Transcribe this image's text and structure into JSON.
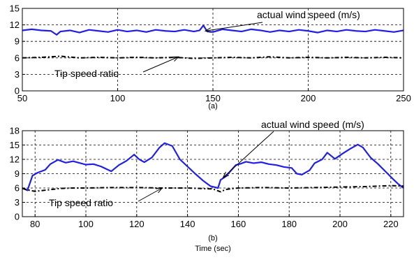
{
  "colors": {
    "wind": "#1f1fe6",
    "tsr": "#000000",
    "axis": "#000000"
  },
  "chart_data": [
    {
      "type": "line",
      "id": "a",
      "caption": "(a)",
      "xlabel": "",
      "ylabel": "",
      "xlim": [
        50,
        250
      ],
      "ylim": [
        0,
        15
      ],
      "xticks": [
        50,
        100,
        150,
        200,
        250
      ],
      "yticks": [
        0,
        3,
        6,
        9,
        12,
        15
      ],
      "grid": true,
      "series": [
        {
          "key": "wind",
          "style": "solid",
          "x": [
            50,
            55,
            60,
            65,
            68,
            70,
            75,
            80,
            85,
            90,
            95,
            100,
            105,
            110,
            115,
            120,
            125,
            130,
            135,
            140,
            143,
            145,
            147,
            150,
            155,
            160,
            165,
            170,
            175,
            180,
            185,
            190,
            195,
            200,
            205,
            210,
            215,
            220,
            225,
            230,
            235,
            240,
            245,
            250
          ],
          "y": [
            11.0,
            11.2,
            11.0,
            10.9,
            10.2,
            10.8,
            11.0,
            10.6,
            11.1,
            10.9,
            10.7,
            11.1,
            10.8,
            11.0,
            10.7,
            11.1,
            10.9,
            10.8,
            11.1,
            10.8,
            11.0,
            11.9,
            10.8,
            10.7,
            11.2,
            11.0,
            10.8,
            11.2,
            11.0,
            10.7,
            11.0,
            10.8,
            11.1,
            10.9,
            10.6,
            11.0,
            10.8,
            11.1,
            10.9,
            10.8,
            11.1,
            10.9,
            10.7,
            11.0
          ]
        },
        {
          "key": "tsr",
          "style": "dashed",
          "x": [
            50,
            60,
            70,
            80,
            90,
            100,
            110,
            120,
            130,
            140,
            150,
            160,
            170,
            180,
            190,
            200,
            210,
            220,
            230,
            240,
            250
          ],
          "y": [
            6.0,
            6.1,
            6.3,
            6.0,
            6.1,
            6.0,
            6.1,
            6.0,
            6.1,
            5.9,
            6.0,
            6.1,
            6.0,
            6.2,
            6.0,
            6.1,
            6.0,
            6.1,
            6.0,
            6.1,
            6.0
          ]
        }
      ],
      "annotations": [
        {
          "text": "actual wind speed (m/s)",
          "point": [
            146,
            10.9
          ]
        },
        {
          "text": "Tip speed ratio",
          "point": [
            132,
            6.2
          ]
        }
      ]
    },
    {
      "type": "line",
      "id": "b",
      "caption": "(b)",
      "xlabel": "Time (sec)",
      "ylabel": "",
      "xlim": [
        75,
        225
      ],
      "ylim": [
        0,
        18
      ],
      "xticks": [
        80,
        100,
        120,
        140,
        160,
        180,
        200,
        220
      ],
      "yticks": [
        0,
        3,
        6,
        9,
        12,
        15,
        18
      ],
      "grid": true,
      "series": [
        {
          "key": "wind",
          "style": "solid",
          "x": [
            75,
            77,
            79,
            81,
            84,
            86,
            89,
            92,
            95,
            100,
            103,
            106,
            110,
            113,
            116,
            119,
            121,
            123,
            126,
            129,
            131,
            134,
            137,
            140,
            143,
            146,
            149,
            152,
            153,
            155,
            157,
            159,
            161,
            163,
            166,
            169,
            172,
            175,
            178,
            181,
            183,
            185,
            188,
            190,
            193,
            195,
            198,
            201,
            204,
            207,
            209,
            212,
            215,
            218,
            221,
            223,
            225
          ],
          "y": [
            6.0,
            5.5,
            8.6,
            9.2,
            9.8,
            11.0,
            11.9,
            11.3,
            11.6,
            10.9,
            11.0,
            10.5,
            9.5,
            10.8,
            11.7,
            13.0,
            12.0,
            11.4,
            12.4,
            14.5,
            15.4,
            14.8,
            12.0,
            10.5,
            9.0,
            7.6,
            6.4,
            6.0,
            7.7,
            8.4,
            9.6,
            10.8,
            11.1,
            11.5,
            11.2,
            11.4,
            11.0,
            10.8,
            10.4,
            10.2,
            9.0,
            8.8,
            9.7,
            11.2,
            12.0,
            13.4,
            12.1,
            13.2,
            14.2,
            15.1,
            14.5,
            12.4,
            11.0,
            9.4,
            7.8,
            6.8,
            6.0
          ]
        },
        {
          "key": "tsr",
          "style": "dashed",
          "x": [
            75,
            78,
            80,
            85,
            90,
            95,
            100,
            110,
            120,
            130,
            140,
            150,
            153,
            155,
            160,
            170,
            180,
            190,
            200,
            210,
            215,
            220,
            225
          ],
          "y": [
            5.9,
            5.5,
            5.3,
            5.6,
            5.9,
            6.0,
            6.0,
            6.1,
            6.1,
            6.0,
            6.0,
            5.8,
            5.2,
            5.7,
            6.0,
            6.1,
            6.0,
            6.1,
            6.2,
            6.3,
            6.4,
            6.5,
            6.4
          ]
        }
      ],
      "annotations": [
        {
          "text": "actual wind speed (m/s)",
          "point": [
            154,
            8.2
          ]
        },
        {
          "text": "Tip speed ratio",
          "point": [
            130,
            6.0
          ]
        }
      ]
    }
  ]
}
